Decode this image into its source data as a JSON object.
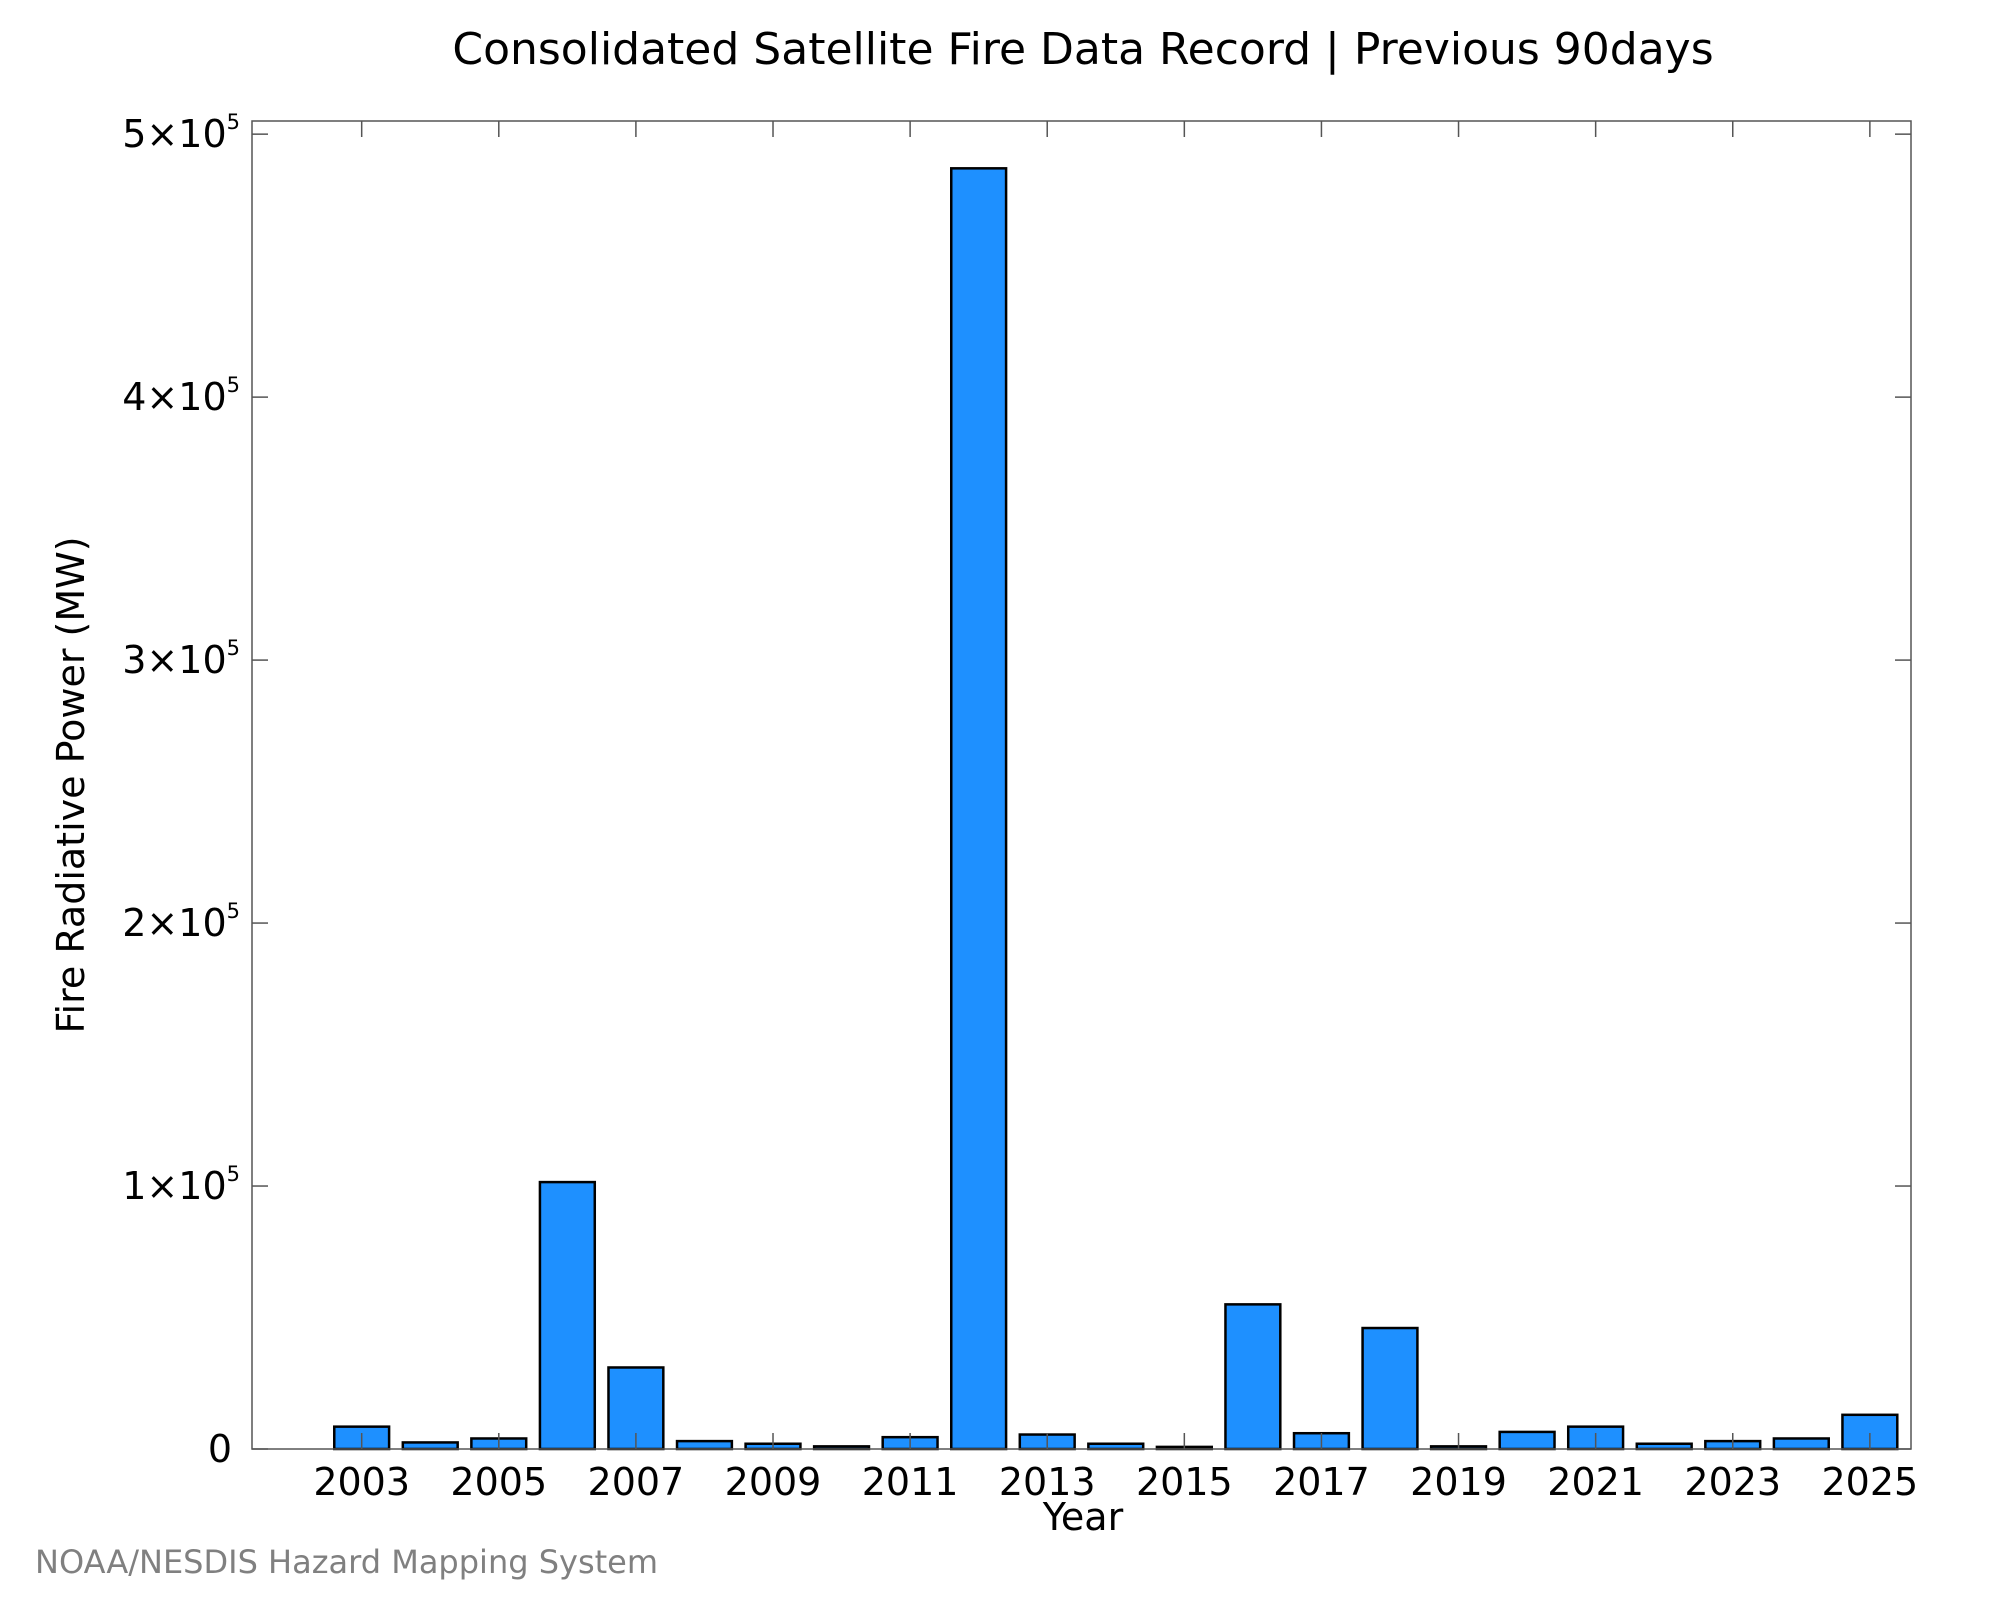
{
  "chart_data": {
    "type": "bar",
    "title": "Consolidated Satellite Fire Data Record | Previous 90days",
    "xlabel": "Year",
    "ylabel": "Fire Radiative Power (MW)",
    "credit": "NOAA/NESDIS Hazard Mapping System",
    "bar_color": "#1E90FF",
    "bar_edge_color": "#000000",
    "ylim": [
      0,
      505000
    ],
    "y_ticks": [
      {
        "value": 0,
        "mantissa": "0",
        "times": "",
        "base": "",
        "exp": ""
      },
      {
        "value": 100000,
        "mantissa": "1",
        "times": "×",
        "base": "10",
        "exp": "5"
      },
      {
        "value": 200000,
        "mantissa": "2",
        "times": "×",
        "base": "10",
        "exp": "5"
      },
      {
        "value": 300000,
        "mantissa": "3",
        "times": "×",
        "base": "10",
        "exp": "5"
      },
      {
        "value": 400000,
        "mantissa": "4",
        "times": "×",
        "base": "10",
        "exp": "5"
      },
      {
        "value": 500000,
        "mantissa": "5",
        "times": "×",
        "base": "10",
        "exp": "5"
      }
    ],
    "x_tick_labels": [
      "2003",
      "2005",
      "2007",
      "2009",
      "2011",
      "2013",
      "2015",
      "2017",
      "2019",
      "2021",
      "2023",
      "2025"
    ],
    "categories": [
      "2003",
      "2004",
      "2005",
      "2006",
      "2007",
      "2008",
      "2009",
      "2010",
      "2011",
      "2012",
      "2013",
      "2014",
      "2015",
      "2016",
      "2017",
      "2018",
      "2019",
      "2020",
      "2021",
      "2022",
      "2023",
      "2024",
      "2025"
    ],
    "values": [
      8500,
      2500,
      4000,
      101500,
      31000,
      3000,
      2000,
      1000,
      4500,
      487000,
      5500,
      2000,
      800,
      55000,
      6000,
      46000,
      1000,
      6500,
      8500,
      2000,
      3000,
      4000,
      13000
    ],
    "grid": false
  }
}
